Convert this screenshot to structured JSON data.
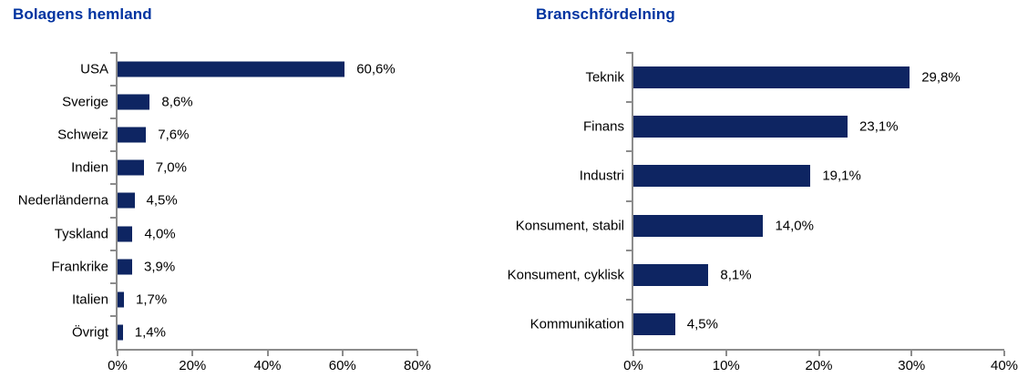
{
  "colors": {
    "bar": "#0E2562",
    "title": "#0033A0",
    "axis": "#8C8C8C",
    "text": "#000000",
    "background": "#FFFFFF"
  },
  "chart_data": [
    {
      "type": "bar",
      "orientation": "horizontal",
      "title": "Bolagens hemland",
      "categories": [
        "USA",
        "Sverige",
        "Schweiz",
        "Indien",
        "Nederländerna",
        "Tyskland",
        "Frankrike",
        "Italien",
        "Övrigt"
      ],
      "values": [
        60.6,
        8.6,
        7.6,
        7.0,
        4.5,
        4.0,
        3.9,
        1.7,
        1.4
      ],
      "value_labels": [
        "60,6%",
        "8,6%",
        "7,6%",
        "7,0%",
        "4,5%",
        "4,0%",
        "3,9%",
        "1,7%",
        "1,4%"
      ],
      "xlim": [
        0,
        80
      ],
      "x_ticks": [
        {
          "value": 0,
          "label": "0%"
        },
        {
          "value": 20,
          "label": "20%"
        },
        {
          "value": 40,
          "label": "40%"
        },
        {
          "value": 60,
          "label": "60%"
        },
        {
          "value": 80,
          "label": "80%"
        }
      ],
      "grid": false,
      "legend": "none"
    },
    {
      "type": "bar",
      "orientation": "horizontal",
      "title": "Branschfördelning",
      "categories": [
        "Teknik",
        "Finans",
        "Industri",
        "Konsument, stabil",
        "Konsument, cyklisk",
        "Kommunikation"
      ],
      "values": [
        29.8,
        23.1,
        19.1,
        14.0,
        8.1,
        4.5
      ],
      "value_labels": [
        "29,8%",
        "23,1%",
        "19,1%",
        "14,0%",
        "8,1%",
        "4,5%"
      ],
      "xlim": [
        0,
        40
      ],
      "x_ticks": [
        {
          "value": 0,
          "label": "0%"
        },
        {
          "value": 10,
          "label": "10%"
        },
        {
          "value": 20,
          "label": "20%"
        },
        {
          "value": 30,
          "label": "30%"
        },
        {
          "value": 40,
          "label": "40%"
        }
      ],
      "grid": false,
      "legend": "none"
    }
  ]
}
